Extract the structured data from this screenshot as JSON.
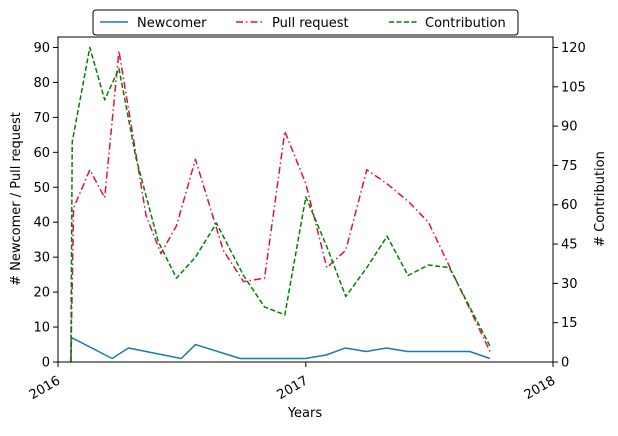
{
  "chart_data": {
    "type": "line",
    "title": "",
    "xlabel": "Years",
    "ylabel_left": "# Newcomer / Pull request",
    "ylabel_right": "# Contribution",
    "x_tick_labels": [
      "2016",
      "2017",
      "2018"
    ],
    "xlim": [
      "2016-01-01",
      "2018-01-01"
    ],
    "ylim_left": [
      0,
      93
    ],
    "ylim_right": [
      0,
      124
    ],
    "yticks_left": [
      0,
      10,
      20,
      30,
      40,
      50,
      60,
      70,
      80,
      90
    ],
    "yticks_right": [
      0,
      15,
      30,
      45,
      60,
      75,
      90,
      105,
      120
    ],
    "grid": false,
    "legend_position": "top-center, above plot",
    "series": [
      {
        "name": "Newcomer",
        "axis": "left",
        "color": "#1f77b4",
        "style": "solid",
        "points": [
          [
            "2016-01-20",
            0
          ],
          [
            "2016-01-21",
            7
          ],
          [
            "2016-03-21",
            1
          ],
          [
            "2016-04-14",
            4
          ],
          [
            "2016-07-01",
            1
          ],
          [
            "2016-07-22",
            5
          ],
          [
            "2016-09-26",
            1
          ],
          [
            "2016-12-31",
            1
          ],
          [
            "2017-01-31",
            2
          ],
          [
            "2017-02-28",
            4
          ],
          [
            "2017-03-31",
            3
          ],
          [
            "2017-04-30",
            4
          ],
          [
            "2017-05-31",
            3
          ],
          [
            "2017-08-31",
            3
          ],
          [
            "2017-09-30",
            1
          ]
        ]
      },
      {
        "name": "Pull request",
        "axis": "left",
        "color": "#dc143c",
        "style": "dashdot",
        "points": [
          [
            "2016-01-20",
            0
          ],
          [
            "2016-01-24",
            44
          ],
          [
            "2016-02-17",
            55
          ],
          [
            "2016-03-10",
            47
          ],
          [
            "2016-03-31",
            89
          ],
          [
            "2016-05-10",
            42
          ],
          [
            "2016-06-01",
            31
          ],
          [
            "2016-06-24",
            39
          ],
          [
            "2016-07-22",
            58
          ],
          [
            "2016-09-01",
            32
          ],
          [
            "2016-10-01",
            23
          ],
          [
            "2016-11-01",
            24
          ],
          [
            "2016-12-01",
            66
          ],
          [
            "2017-01-01",
            51
          ],
          [
            "2017-02-01",
            27
          ],
          [
            "2017-03-01",
            32
          ],
          [
            "2017-04-01",
            55
          ],
          [
            "2017-05-01",
            51
          ],
          [
            "2017-06-01",
            46
          ],
          [
            "2017-07-01",
            40
          ],
          [
            "2017-09-30",
            3
          ]
        ]
      },
      {
        "name": "Contribution",
        "axis": "right",
        "color": "#008000",
        "style": "dashed",
        "points": [
          [
            "2016-01-20",
            0
          ],
          [
            "2016-01-22",
            84
          ],
          [
            "2016-02-17",
            120
          ],
          [
            "2016-03-10",
            100
          ],
          [
            "2016-03-31",
            112
          ],
          [
            "2016-04-25",
            78
          ],
          [
            "2016-05-28",
            46
          ],
          [
            "2016-06-24",
            32
          ],
          [
            "2016-07-22",
            40
          ],
          [
            "2016-08-22",
            53
          ],
          [
            "2016-10-01",
            33
          ],
          [
            "2016-11-01",
            21
          ],
          [
            "2016-12-01",
            18
          ],
          [
            "2017-01-01",
            63
          ],
          [
            "2017-02-01",
            44
          ],
          [
            "2017-03-01",
            25
          ],
          [
            "2017-04-01",
            36
          ],
          [
            "2017-05-01",
            48
          ],
          [
            "2017-06-01",
            33
          ],
          [
            "2017-07-01",
            37
          ],
          [
            "2017-08-01",
            36
          ],
          [
            "2017-09-30",
            6
          ]
        ]
      }
    ]
  }
}
